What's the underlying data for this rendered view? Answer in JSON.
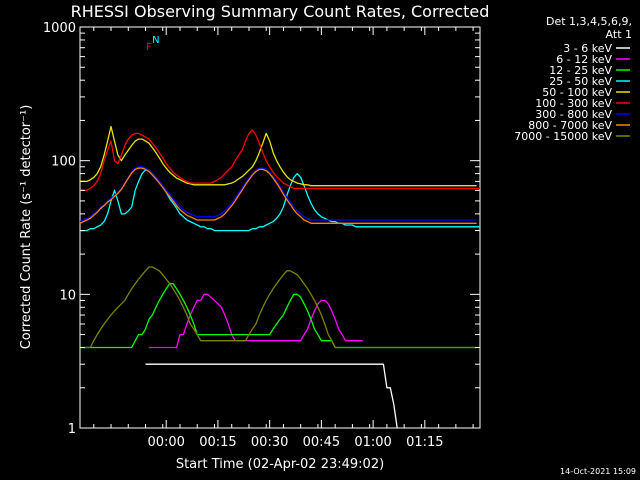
{
  "chart_data": {
    "type": "line",
    "title": "RHESSI Observing Summary Count Rates, Corrected",
    "ylabel": "Corrected Count Rate (s⁻¹ detector⁻¹)",
    "xlabel": "Start Time (02-Apr-02 23:49:02)",
    "y_scale": "log",
    "ylim": [
      1,
      1000
    ],
    "y_ticks": [
      {
        "v": 1,
        "label": "1"
      },
      {
        "v": 10,
        "label": "10"
      },
      {
        "v": 100,
        "label": "100"
      },
      {
        "v": 1000,
        "label": "1000"
      }
    ],
    "xlim_minutes": [
      -14,
      102
    ],
    "x_ticks": [
      {
        "m": 11,
        "label": "00:00"
      },
      {
        "m": 26,
        "label": "00:15"
      },
      {
        "m": 41,
        "label": "00:30"
      },
      {
        "m": 56,
        "label": "00:45"
      },
      {
        "m": 71,
        "label": "01:00"
      },
      {
        "m": 86,
        "label": "01:15"
      }
    ],
    "legend_header": [
      "Det 1,3,4,5,6,9,",
      "Att 1"
    ],
    "series": [
      {
        "name": "3 - 6 keV",
        "color": "#ffffff",
        "start_minute": 0,
        "values": [
          null,
          null,
          null,
          null,
          null,
          3,
          3,
          3,
          3,
          3,
          3,
          3,
          3,
          3,
          3,
          3,
          3,
          3,
          3,
          3,
          3,
          3,
          3,
          3,
          3,
          3,
          3,
          3,
          3,
          3,
          3,
          3,
          3,
          3,
          3,
          3,
          3,
          3,
          3,
          3,
          3,
          3,
          3,
          3,
          3,
          3,
          3,
          3,
          3,
          3,
          3,
          3,
          3,
          3,
          3,
          3,
          3,
          3,
          3,
          3,
          3,
          3,
          3,
          3,
          3,
          3,
          3,
          3,
          3,
          3,
          3,
          3,
          3,
          3,
          3,
          2,
          2,
          1.5,
          1,
          null,
          null,
          null,
          null,
          null,
          null,
          null,
          null,
          null,
          null,
          null,
          null,
          null,
          null,
          null,
          null,
          null,
          null,
          null,
          null,
          null,
          null,
          null,
          null,
          null,
          null,
          null,
          null,
          null,
          null,
          null,
          null,
          null,
          null,
          null,
          null,
          null
        ]
      },
      {
        "name": "6 - 12 keV",
        "color": "#ff00ff",
        "start_minute": 0,
        "values": [
          null,
          null,
          null,
          null,
          null,
          null,
          4,
          4,
          4,
          4,
          4,
          4,
          4,
          4,
          4,
          5,
          5,
          6,
          7,
          8,
          9,
          9,
          10,
          10,
          9.5,
          9,
          8.5,
          8,
          7,
          6,
          5,
          4.5,
          4.5,
          4.5,
          4.5,
          4.5,
          4.5,
          4.5,
          4.5,
          4.5,
          4.5,
          4.5,
          4.5,
          4.5,
          4.5,
          4.5,
          4.5,
          4.5,
          4.5,
          4.5,
          4.5,
          5,
          5.5,
          6.5,
          7.5,
          8.5,
          9,
          9,
          8.5,
          7.5,
          6.5,
          5.5,
          5,
          4.5,
          4.5,
          4.5,
          4.5,
          4.5,
          4.5,
          null,
          null,
          null,
          null,
          null,
          null,
          null,
          null,
          null,
          null,
          null,
          null,
          null,
          null,
          null,
          null,
          null,
          null,
          null,
          null,
          null,
          null,
          null,
          null,
          null,
          null,
          null,
          null,
          null,
          null,
          null,
          null,
          null,
          null,
          null,
          null,
          null,
          null,
          null,
          null,
          null,
          null,
          null,
          null,
          null,
          null
        ]
      },
      {
        "name": "12 - 25 keV",
        "color": "#00ff00",
        "start_minute": -14,
        "values": [
          4,
          4,
          4,
          4,
          4,
          4,
          4,
          4,
          4,
          4,
          4,
          4,
          4,
          4,
          4,
          4,
          4.5,
          5,
          5,
          5.5,
          6.5,
          7,
          8,
          9,
          10,
          11,
          12,
          12,
          11,
          10,
          9,
          8,
          7,
          6,
          5,
          5,
          5,
          5,
          5,
          5,
          5,
          5,
          5,
          5,
          5,
          5,
          5,
          5,
          5,
          5,
          5,
          5,
          5,
          5,
          5,
          5,
          5.5,
          6,
          6.5,
          7,
          8,
          9,
          10,
          10,
          9.5,
          8.5,
          7.5,
          6.5,
          5.5,
          5,
          4.5,
          4.5,
          4.5,
          4.5,
          4,
          4,
          4,
          4,
          4,
          4,
          4,
          4,
          4,
          4,
          4,
          4,
          4,
          4,
          4,
          4,
          4,
          4,
          4,
          4,
          4,
          4,
          4,
          4,
          4,
          4,
          4,
          4,
          4,
          4,
          4,
          4,
          4,
          4,
          4,
          4,
          4,
          4,
          4,
          4,
          4,
          4
        ]
      },
      {
        "name": "25 - 50 keV",
        "color": "#00ffff",
        "start_minute": -14,
        "values": [
          30,
          30,
          30,
          31,
          31,
          32,
          33,
          35,
          40,
          50,
          60,
          50,
          40,
          40,
          42,
          45,
          60,
          70,
          80,
          85,
          85,
          80,
          75,
          70,
          65,
          58,
          52,
          48,
          44,
          40,
          38,
          36,
          35,
          34,
          33,
          32,
          32,
          31,
          31,
          30,
          30,
          30,
          30,
          30,
          30,
          30,
          30,
          30,
          30,
          30,
          31,
          31,
          32,
          32,
          33,
          34,
          35,
          37,
          40,
          45,
          55,
          65,
          75,
          80,
          75,
          65,
          55,
          48,
          43,
          40,
          38,
          37,
          36,
          35,
          35,
          34,
          34,
          33,
          33,
          33,
          32,
          32,
          32,
          32,
          32,
          32,
          32,
          32,
          32,
          32,
          32,
          32,
          32,
          32,
          32,
          32,
          32,
          32,
          32,
          32,
          32,
          32,
          32,
          32,
          32,
          32,
          32,
          32,
          32,
          32,
          32,
          32,
          32,
          32,
          32,
          32,
          32
        ]
      },
      {
        "name": "50 - 100 keV",
        "color": "#e6e600",
        "start_minute": -14,
        "values": [
          70,
          70,
          70,
          72,
          75,
          80,
          90,
          110,
          140,
          180,
          140,
          110,
          100,
          110,
          120,
          130,
          140,
          145,
          145,
          140,
          135,
          125,
          115,
          105,
          95,
          88,
          82,
          78,
          74,
          72,
          70,
          68,
          67,
          66,
          66,
          66,
          66,
          66,
          66,
          66,
          66,
          66,
          66,
          67,
          68,
          70,
          73,
          76,
          80,
          85,
          90,
          100,
          115,
          135,
          160,
          140,
          115,
          100,
          90,
          82,
          76,
          72,
          70,
          68,
          67,
          66,
          66,
          65,
          65,
          65,
          65,
          65,
          65,
          65,
          65,
          65,
          65,
          65,
          65,
          65,
          65,
          65,
          65,
          65,
          65,
          65,
          65,
          65,
          65,
          65,
          65,
          65,
          65,
          65,
          65,
          65,
          65,
          65,
          65,
          65,
          65,
          65,
          65,
          65,
          65,
          65,
          65,
          65,
          65,
          65,
          65,
          65,
          65,
          65,
          65,
          65
        ]
      },
      {
        "name": "100 - 300 keV",
        "color": "#ff0000",
        "start_minute": -14,
        "values": [
          60,
          60,
          60,
          62,
          65,
          70,
          80,
          100,
          120,
          140,
          100,
          95,
          110,
          130,
          145,
          155,
          160,
          160,
          155,
          150,
          145,
          135,
          125,
          115,
          105,
          95,
          88,
          82,
          78,
          75,
          72,
          70,
          68,
          68,
          68,
          68,
          68,
          68,
          68,
          70,
          72,
          75,
          80,
          85,
          90,
          100,
          110,
          120,
          140,
          160,
          170,
          155,
          135,
          115,
          100,
          90,
          82,
          76,
          72,
          68,
          66,
          64,
          62,
          62,
          62,
          62,
          62,
          62,
          62,
          62,
          62,
          62,
          62,
          62,
          62,
          62,
          62,
          62,
          62,
          62,
          62,
          62,
          62,
          62,
          62,
          62,
          62,
          62,
          62,
          62,
          62,
          62,
          62,
          62,
          62,
          62,
          62,
          62,
          62,
          62,
          62,
          62,
          62,
          62,
          62,
          62,
          62,
          62,
          62,
          62,
          62,
          62,
          62,
          62,
          62,
          62,
          62,
          62,
          62
        ]
      },
      {
        "name": "300 - 800 keV",
        "color": "#0000ff",
        "start_minute": -14,
        "values": [
          35,
          36,
          37,
          38,
          40,
          42,
          45,
          47,
          50,
          52,
          55,
          58,
          62,
          68,
          75,
          82,
          88,
          90,
          90,
          88,
          85,
          80,
          75,
          70,
          65,
          60,
          56,
          52,
          48,
          45,
          43,
          41,
          40,
          39,
          38,
          38,
          38,
          38,
          38,
          38,
          39,
          40,
          42,
          45,
          48,
          52,
          57,
          62,
          68,
          74,
          80,
          85,
          88,
          88,
          86,
          82,
          76,
          70,
          64,
          58,
          53,
          49,
          45,
          42,
          40,
          38,
          37,
          36,
          36,
          36,
          36,
          36,
          36,
          36,
          36,
          36,
          36,
          36,
          36,
          36,
          36,
          36,
          36,
          36,
          36,
          36,
          36,
          36,
          36,
          36,
          36,
          36,
          36,
          36,
          36,
          36,
          36,
          36,
          36,
          36,
          36,
          36,
          36,
          36,
          36,
          36,
          36,
          36,
          36,
          36,
          36,
          36,
          36,
          36,
          36,
          36
        ]
      },
      {
        "name": "800 - 7000 keV",
        "color": "#ff8000",
        "start_minute": -14,
        "values": [
          34,
          35,
          36,
          37,
          39,
          41,
          44,
          46,
          49,
          51,
          54,
          57,
          61,
          67,
          74,
          81,
          86,
          88,
          88,
          86,
          83,
          78,
          73,
          68,
          63,
          58,
          54,
          50,
          46,
          43,
          41,
          39,
          38,
          37,
          36,
          36,
          36,
          36,
          36,
          36,
          37,
          38,
          40,
          43,
          46,
          50,
          55,
          60,
          66,
          72,
          78,
          83,
          86,
          86,
          84,
          80,
          74,
          68,
          62,
          56,
          51,
          47,
          43,
          40,
          38,
          36,
          35,
          34,
          34,
          34,
          34,
          34,
          34,
          34,
          34,
          34,
          34,
          34,
          34,
          34,
          34,
          34,
          34,
          34,
          34,
          34,
          34,
          34,
          34,
          34,
          34,
          34,
          34,
          34,
          34,
          34,
          34,
          34,
          34,
          34,
          34,
          34,
          34,
          34,
          34,
          34,
          34,
          34,
          34,
          34,
          34,
          34,
          34,
          34,
          34,
          34
        ]
      },
      {
        "name": "7000 - 15000 keV",
        "color": "#808000",
        "start_minute": -14,
        "values": [
          4,
          4,
          4,
          4,
          4.5,
          5,
          5.5,
          6,
          6.5,
          7,
          7.5,
          8,
          8.5,
          9,
          10,
          11,
          12,
          13,
          14,
          15,
          16,
          16,
          15.5,
          15,
          14,
          13,
          12,
          11,
          10,
          9,
          8,
          7,
          6,
          5.5,
          5,
          4.5,
          4.5,
          4.5,
          4.5,
          4.5,
          4.5,
          4.5,
          4.5,
          4.5,
          4.5,
          4.5,
          4.5,
          4.5,
          4.5,
          5,
          5.5,
          6,
          7,
          8,
          9,
          10,
          11,
          12,
          13,
          14,
          15,
          15,
          14.5,
          14,
          13,
          12,
          11,
          10,
          9,
          8,
          7,
          6,
          5,
          4.5,
          4,
          4,
          4,
          4,
          4,
          4,
          4,
          4,
          4,
          4,
          4,
          4,
          4,
          4,
          4,
          4,
          4,
          4,
          4,
          4,
          4,
          4,
          4,
          4,
          4,
          4,
          4,
          4,
          4,
          4,
          4,
          4,
          4,
          4,
          4,
          4,
          4,
          4,
          4,
          4,
          4,
          4,
          4
        ]
      }
    ],
    "annotations": [
      {
        "label": "N",
        "color": "#00ffff",
        "minute": 8
      },
      {
        "label": "F",
        "color": "#ff0000",
        "minute": 6
      }
    ],
    "timestamp": "14-Oct-2021 15:09"
  }
}
